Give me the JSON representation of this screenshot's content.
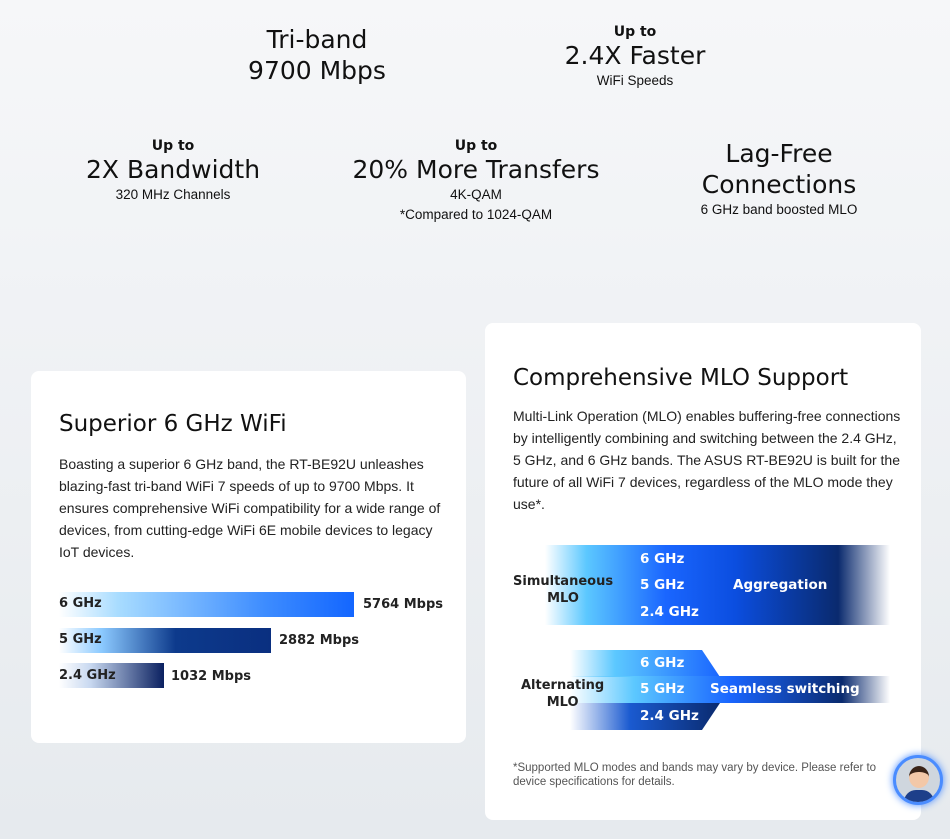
{
  "stats": [
    {
      "up": "",
      "big": "Tri-band\n9700 Mbps",
      "sub": ""
    },
    {
      "up": "Up to",
      "big": "2.4X Faster",
      "sub": "WiFi Speeds"
    },
    {
      "up": "Up to",
      "big": "2X Bandwidth",
      "sub": "320 MHz Channels"
    },
    {
      "up": "Up to",
      "big": "20% More Transfers",
      "sub": "4K-QAM",
      "sub2": "*Compared to 1024-QAM"
    },
    {
      "up": "",
      "big": "Lag-Free\nConnections",
      "sub": "6 GHz band boosted MLO"
    }
  ],
  "left": {
    "title": "Superior 6 GHz WiFi",
    "body": "Boasting a superior 6 GHz band, the RT-BE92U unleashes blazing-fast tri-band WiFi 7 speeds of up to 9700 Mbps. It ensures comprehensive WiFi compatibility for a wide range of devices, from cutting-edge WiFi 6E mobile devices to legacy IoT devices.",
    "bars": [
      {
        "label": "6 GHz",
        "value": 5764,
        "text": "5764 Mbps"
      },
      {
        "label": "5 GHz",
        "value": 2882,
        "text": "2882 Mbps"
      },
      {
        "label": "2.4 GHz",
        "value": 1032,
        "text": "1032 Mbps"
      }
    ]
  },
  "right": {
    "title": "Comprehensive MLO Support",
    "body": "Multi-Link Operation (MLO) enables buffering-free connections by intelligently combining and switching between the 2.4 GHz, 5 GHz, and 6 GHz bands. The ASUS RT-BE92U is built for the future of all WiFi 7 devices, regardless of the MLO mode they use*.",
    "simultaneous": {
      "label": "Simultaneous\nMLO",
      "bands": [
        "6 GHz",
        "5 GHz",
        "2.4 GHz"
      ],
      "mode": "Aggregation"
    },
    "alternating": {
      "label": "Alternating\nMLO",
      "bands": [
        "6 GHz",
        "5 GHz",
        "2.4 GHz"
      ],
      "mode": "Seamless switching"
    },
    "note": "*Supported MLO modes and bands may vary by device. Please refer to device specifications for details."
  },
  "colors": {
    "bright": "#1366ff",
    "dark": "#0a2a6e",
    "light": "#5cc8ff"
  }
}
